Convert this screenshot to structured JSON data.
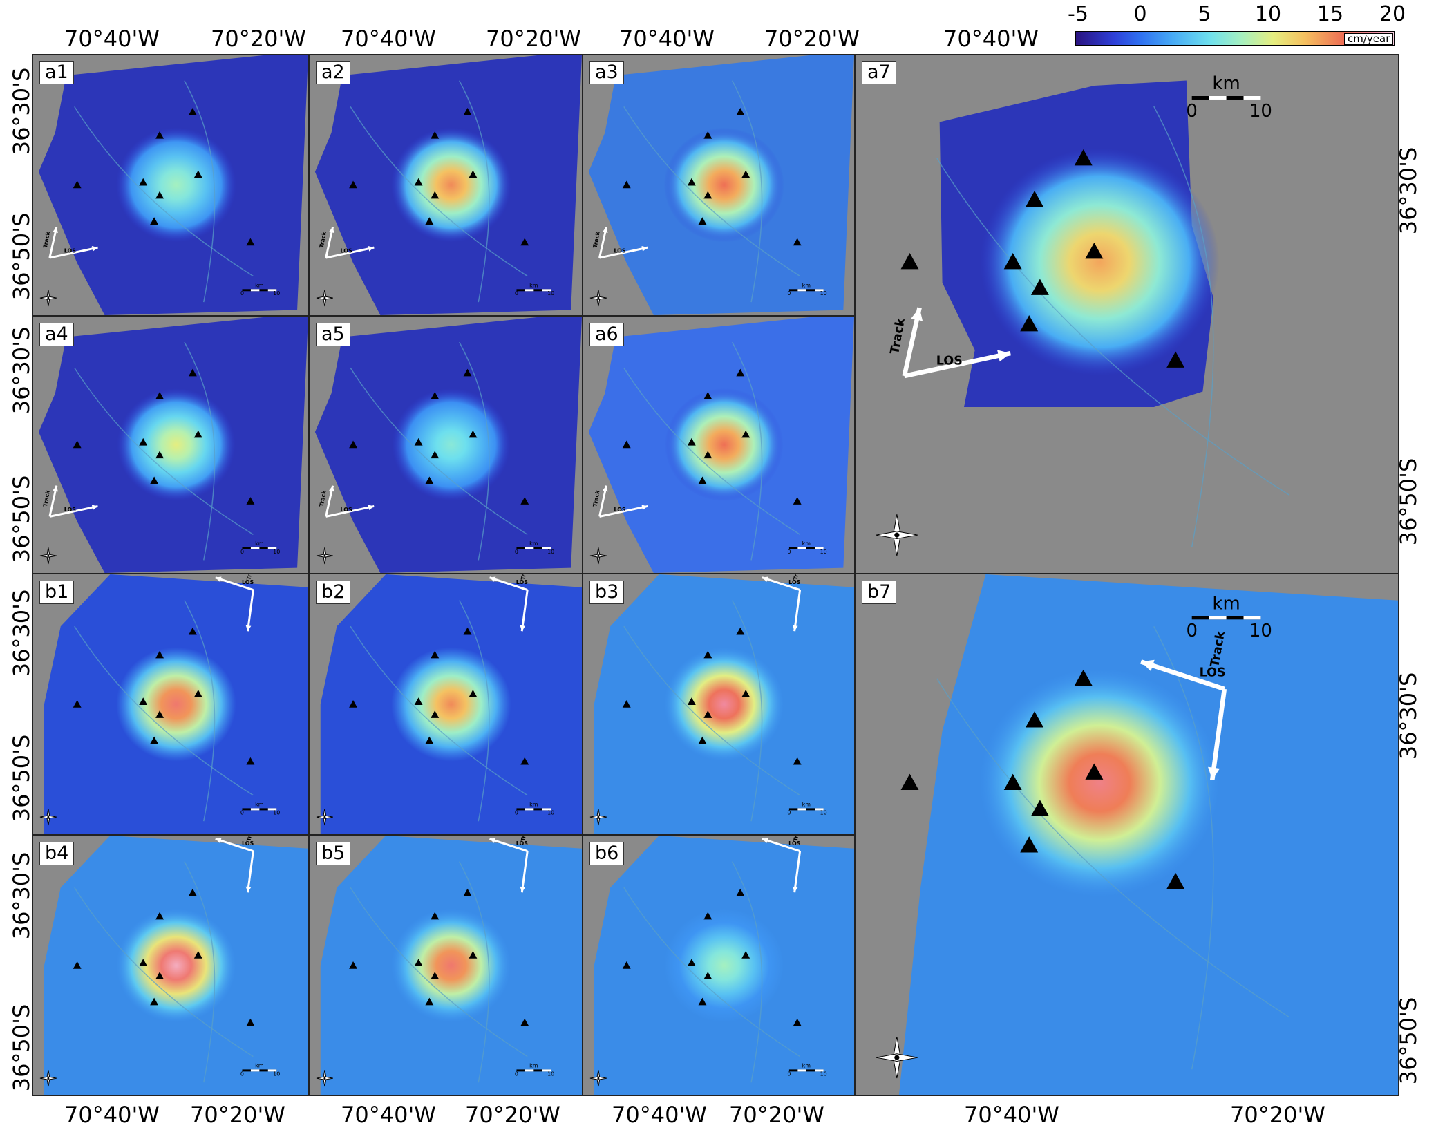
{
  "colorbar": {
    "ticks": [
      "-5",
      "0",
      "5",
      "10",
      "15",
      "20"
    ],
    "unit": "cm/year",
    "colors": [
      "#2a1380",
      "#2e40d8",
      "#46a8f5",
      "#a5f0c0",
      "#f5c060",
      "#ee6f55",
      "#f7cfe0"
    ]
  },
  "axes": {
    "top_labels": [
      "70°40'W",
      "70°20'W",
      "70°40'W",
      "70°20'W",
      "70°40'W",
      "70°20'W",
      "70°40'W"
    ],
    "bottom_labels": [
      "70°40'W",
      "70°20'W",
      "70°40'W",
      "70°20'W",
      "70°40'W",
      "70°20'W",
      "70°40'W",
      "70°20'W"
    ],
    "left_labels": [
      "36°30'S",
      "36°50'S",
      "36°30'S",
      "36°50'S",
      "36°30'S",
      "36°50'S",
      "36°30'S",
      "36°50'S"
    ],
    "right_labels": [
      "36°30'S",
      "36°50'S",
      "36°30'S",
      "36°50'S"
    ]
  },
  "panels": [
    {
      "id": "a1",
      "label": "a1",
      "group": "a",
      "max_rate": 8
    },
    {
      "id": "a2",
      "label": "a2",
      "group": "a",
      "max_rate": 14
    },
    {
      "id": "a3",
      "label": "a3",
      "group": "a",
      "max_rate": 15
    },
    {
      "id": "a4",
      "label": "a4",
      "group": "a",
      "max_rate": 10
    },
    {
      "id": "a5",
      "label": "a5",
      "group": "a",
      "max_rate": 7
    },
    {
      "id": "a6",
      "label": "a6",
      "group": "a",
      "max_rate": 15
    },
    {
      "id": "a7",
      "label": "a7",
      "group": "a",
      "max_rate": 13
    },
    {
      "id": "b1",
      "label": "b1",
      "group": "b",
      "max_rate": 16
    },
    {
      "id": "b2",
      "label": "b2",
      "group": "b",
      "max_rate": 14
    },
    {
      "id": "b3",
      "label": "b3",
      "group": "b",
      "max_rate": 18
    },
    {
      "id": "b4",
      "label": "b4",
      "group": "b",
      "max_rate": 19
    },
    {
      "id": "b5",
      "label": "b5",
      "group": "b",
      "max_rate": 16
    },
    {
      "id": "b6",
      "label": "b6",
      "group": "b",
      "max_rate": 8
    },
    {
      "id": "b7",
      "label": "b7",
      "group": "b",
      "max_rate": 17
    }
  ],
  "legend": {
    "track": "Track",
    "los": "LOS",
    "scale_unit": "km",
    "scale_min": "0",
    "scale_max": "10"
  }
}
